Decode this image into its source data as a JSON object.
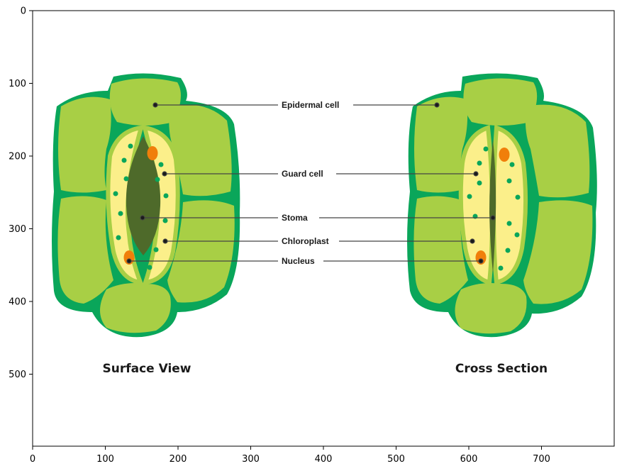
{
  "axes": {
    "x_ticks": [
      "0",
      "100",
      "200",
      "300",
      "400",
      "500",
      "600",
      "700"
    ],
    "y_ticks": [
      "0",
      "100",
      "200",
      "300",
      "400",
      "500"
    ]
  },
  "labels": {
    "epidermal": "Epidermal cell",
    "guard": "Guard cell",
    "stoma": "Stoma",
    "chloroplast": "Chloroplast",
    "nucleus": "Nucleus"
  },
  "captions": {
    "surface": "Surface View",
    "cross": "Cross Section"
  },
  "colors": {
    "epidermal_fill": "#a8cf45",
    "epidermal_outline": "#0aa65a",
    "guard_fill": "#fbef8a",
    "guard_border": "#a8cf45",
    "chloroplast": "#0aa65a",
    "nucleus": "#f07f0a",
    "stoma_pore": "#4e6a2a"
  }
}
